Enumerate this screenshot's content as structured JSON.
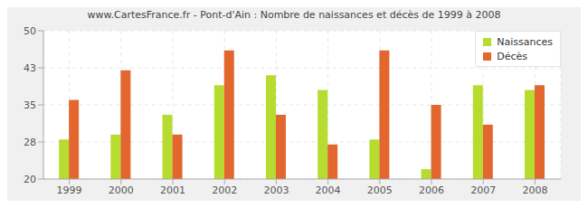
{
  "chart_data": {
    "type": "bar",
    "title": "www.CartesFrance.fr - Pont-d'Ain : Nombre de naissances et décès de 1999 à 2008",
    "categories": [
      "1999",
      "2000",
      "2001",
      "2002",
      "2003",
      "2004",
      "2005",
      "2006",
      "2007",
      "2008"
    ],
    "series": [
      {
        "name": "Naissances",
        "color": "#b5dc2f",
        "values": [
          28,
          29,
          33,
          39,
          41,
          38,
          28,
          22,
          39,
          38
        ]
      },
      {
        "name": "Décès",
        "color": "#e2662e",
        "values": [
          36,
          42,
          29,
          46,
          33,
          27,
          46,
          35,
          31,
          39
        ]
      }
    ],
    "ylim": [
      20,
      50
    ],
    "yticks": [
      20,
      {
        "value": 27.5,
        "label": "28"
      },
      35,
      {
        "value": 42.5,
        "label": "43"
      },
      50
    ],
    "grid": true,
    "legend": "top-right"
  }
}
